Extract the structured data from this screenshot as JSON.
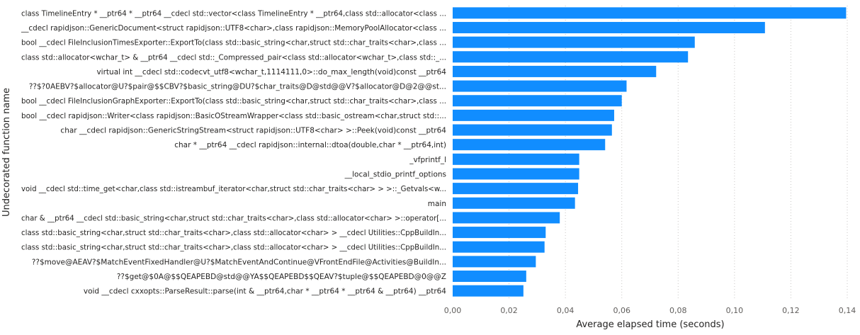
{
  "chart_data": {
    "type": "bar",
    "orientation": "horizontal",
    "xlabel": "Average elapsed time (seconds)",
    "ylabel": "Undecorated function name",
    "xlim": [
      0,
      0.14
    ],
    "xticks": [
      "0,00",
      "0,02",
      "0,04",
      "0,06",
      "0,08",
      "0,10",
      "0,12",
      "0,14"
    ],
    "grid": "vertical dotted",
    "bar_color": "#118DFF",
    "categories": [
      "class TimelineEntry * __ptr64 * __ptr64 __cdecl std::vector<class TimelineEntry * __ptr64,class std::allocator<class ...",
      "__cdecl rapidjson::GenericDocument<struct rapidjson::UTF8<char>,class rapidjson::MemoryPoolAllocator<class ...",
      "bool __cdecl FileInclusionTimesExporter::ExportTo(class std::basic_string<char,struct std::char_traits<char>,class ...",
      "class std::allocator<wchar_t> & __ptr64 __cdecl std::_Compressed_pair<class std::allocator<wchar_t>,class std::_...",
      "virtual int __cdecl std::codecvt_utf8<wchar_t,1114111,0>::do_max_length(void)const __ptr64",
      "??$?0AEBV?$allocator@U?$pair@$$CBV?$basic_string@DU?$char_traits@D@std@@V?$allocator@D@2@@st...",
      "bool __cdecl FileInclusionGraphExporter::ExportTo(class std::basic_string<char,struct std::char_traits<char>,class ...",
      "bool __cdecl rapidjson::Writer<class rapidjson::BasicOStreamWrapper<class std::basic_ostream<char,struct std::...",
      "char __cdecl rapidjson::GenericStringStream<struct rapidjson::UTF8<char> >::Peek(void)const __ptr64",
      "char * __ptr64 __cdecl rapidjson::internal::dtoa(double,char * __ptr64,int)",
      "_vfprintf_l",
      "__local_stdio_printf_options",
      "void __cdecl std::time_get<char,class std::istreambuf_iterator<char,struct std::char_traits<char> > >::_Getvals<w...",
      "main",
      "char & __ptr64 __cdecl std::basic_string<char,struct std::char_traits<char>,class std::allocator<char> >::operator[...",
      "class std::basic_string<char,struct std::char_traits<char>,class std::allocator<char> > __cdecl Utilities::CppBuildIn...",
      "class std::basic_string<char,struct std::char_traits<char>,class std::allocator<char> > __cdecl Utilities::CppBuildIn...",
      "??$move@AEAV?$MatchEventFixedHandler@U?$MatchEventAndContinue@VFrontEndFile@Activities@BuildIn...",
      "??$get@$0A@$$QEAPEBD@std@@YA$$QEAPEBD$$QEAV?$tuple@$$QEAPEBD@0@@Z",
      "void __cdecl cxxopts::ParseResult::parse(int & __ptr64,char * __ptr64 * __ptr64 & __ptr64) __ptr64"
    ],
    "values": [
      0.1396,
      0.1108,
      0.0859,
      0.0835,
      0.0722,
      0.0617,
      0.06,
      0.0573,
      0.0565,
      0.0541,
      0.0449,
      0.0449,
      0.0445,
      0.0434,
      0.038,
      0.033,
      0.0326,
      0.0295,
      0.0261,
      0.0251
    ]
  }
}
